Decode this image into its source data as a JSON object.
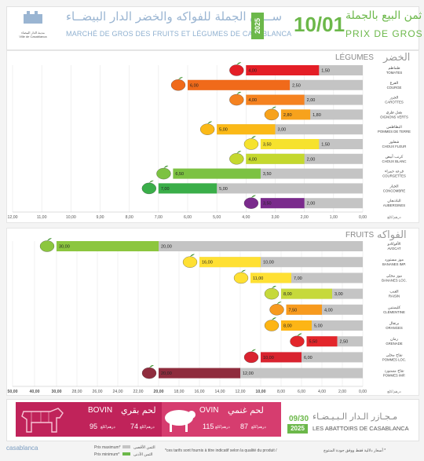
{
  "header": {
    "logo_line1": "مدينة الدار البيضاء",
    "logo_line2": "Ville de Casablanca",
    "market_ar": "ســوق الجملة للفواكه والخضر الدار البيضــاء",
    "market_fr": "MARCHÉ DE GROS DES FRUITS ET LÉGUMES DE CASABLANCA",
    "year": "2025",
    "date": "10/01",
    "price_title_ar": "ثمن البيع بالجملة",
    "price_title_fr": "PRIX DE GROS"
  },
  "colors": {
    "green": "#6cb84a",
    "max_bar": "#c4c4c4",
    "bovin": "#c0235a",
    "ovin": "#d63d6f"
  },
  "unit_label": "درهم/كلغ",
  "chart_data": [
    {
      "type": "bar",
      "title": "LÉGUMES",
      "title_ar": "الخضر",
      "orientation": "horizontal-reversed",
      "xlim": [
        0,
        12
      ],
      "ticks": [
        "12,00",
        "11,00",
        "10,00",
        "9,00",
        "8,00",
        "7,00",
        "6,00",
        "5,00",
        "4,00",
        "3,00",
        "2,00",
        "1,00",
        "0,00"
      ],
      "series_meaning": {
        "max": "Prix maximum",
        "min": "Prix minimum"
      },
      "rows": [
        {
          "fr": "TOMATES",
          "ar": "طماطم",
          "max": 4.0,
          "min": 1.5,
          "max_label": "4,00",
          "min_label": "1,50",
          "color": "#e41e26",
          "icon": "tomato-icon"
        },
        {
          "fr": "COURGE",
          "ar": "القرع",
          "max": 6.0,
          "min": 2.5,
          "max_label": "6,00",
          "min_label": "2,50",
          "color": "#f06a1a",
          "icon": "pumpkin-icon"
        },
        {
          "fr": "CAROTTES",
          "ar": "الجزر",
          "max": 4.0,
          "min": 2.0,
          "max_label": "4,00",
          "min_label": "2,00",
          "color": "#f58220",
          "icon": "carrot-icon"
        },
        {
          "fr": "OIGNONS VERTS",
          "ar": "بصل طري",
          "max": 2.8,
          "min": 1.8,
          "max_label": "2,80",
          "min_label": "1,80",
          "color": "#f7a21c",
          "icon": "green-onion-icon"
        },
        {
          "fr": "POMMES DE TERRE",
          "ar": "البطاطس",
          "max": 5.0,
          "min": 3.0,
          "max_label": "5,00",
          "min_label": "3,00",
          "color": "#fbb917",
          "icon": "potato-icon"
        },
        {
          "fr": "CHOUX FLEUR",
          "ar": "شفلور",
          "max": 3.5,
          "min": 1.5,
          "max_label": "3,50",
          "min_label": "1,50",
          "color": "#f6e22e",
          "icon": "cauliflower-icon"
        },
        {
          "fr": "CHOUX BLANC",
          "ar": "كرنب أبيض",
          "max": 4.0,
          "min": 2.0,
          "max_label": "4,00",
          "min_label": "2,00",
          "color": "#c4d82e",
          "icon": "cabbage-icon"
        },
        {
          "fr": "COURGETTES",
          "ar": "قرعة حمراء",
          "max": 6.5,
          "min": 3.5,
          "max_label": "6,50",
          "min_label": "3,50",
          "color": "#7cc242",
          "icon": "zucchini-icon"
        },
        {
          "fr": "CONCOMBRE",
          "ar": "الخيار",
          "max": 7.0,
          "min": 5.0,
          "max_label": "7,00",
          "min_label": "5,00",
          "color": "#3aae49",
          "icon": "cucumber-icon"
        },
        {
          "fr": "AUBERGINES",
          "ar": "الباذنجان",
          "max": 3.5,
          "min": 2.0,
          "max_label": "3,50",
          "min_label": "2,00",
          "color": "#7a2a8c",
          "icon": "eggplant-icon"
        }
      ]
    },
    {
      "type": "bar",
      "title": "FRUITS",
      "title_ar": "الفواكه",
      "orientation": "horizontal-reversed",
      "xlim": [
        0,
        50
      ],
      "ticks": [
        "50,00",
        "40,00",
        "30,00",
        "28,00",
        "26,00",
        "24,00",
        "22,00",
        "20,00",
        "18,00",
        "16,00",
        "14,00",
        "12,00",
        "10,00",
        "8,00",
        "6,00",
        "4,00",
        "2,00",
        "0,00"
      ],
      "broken_axis": "0–30 linear; 30–50 compressed",
      "series_meaning": {
        "max": "Prix maximum",
        "min": "Prix minimum"
      },
      "rows": [
        {
          "fr": "AVOCAT",
          "ar": "الأفوكادو",
          "max": 30.0,
          "min": 20.0,
          "max_label": "30,00",
          "min_label": "20,00",
          "color": "#8cc63f",
          "icon": "avocado-icon"
        },
        {
          "fr": "BANANES IMP.",
          "ar": "موز مستورد",
          "max": 16.0,
          "min": 10.0,
          "max_label": "16,00",
          "min_label": "10,00",
          "color": "#ffe033",
          "icon": "banana-icon"
        },
        {
          "fr": "BANANES LOC.",
          "ar": "موز محلي",
          "max": 11.0,
          "min": 7.0,
          "max_label": "11,00",
          "min_label": "7,00",
          "color": "#ffe033",
          "icon": "banana-local-icon"
        },
        {
          "fr": "RAISIN",
          "ar": "العنب",
          "max": 8.0,
          "min": 3.0,
          "max_label": "8,00",
          "min_label": "3,00",
          "color": "#c6d93b",
          "icon": "grape-icon"
        },
        {
          "fr": "CLÉMENTINE",
          "ar": "كليمنتين",
          "max": 7.5,
          "min": 4.0,
          "max_label": "7,50",
          "min_label": "4,00",
          "color": "#f79a1e",
          "icon": "clementine-icon"
        },
        {
          "fr": "ORANGES",
          "ar": "برتقال",
          "max": 8.0,
          "min": 5.0,
          "max_label": "8,00",
          "min_label": "5,00",
          "color": "#fdb515",
          "icon": "orange-icon"
        },
        {
          "fr": "GRENADE",
          "ar": "رمان",
          "max": 5.5,
          "min": 2.5,
          "max_label": "5,50",
          "min_label": "2,50",
          "color": "#e3262b",
          "icon": "pomegranate-icon"
        },
        {
          "fr": "POMMES LOC.",
          "ar": "تفاح محلي",
          "max": 10.0,
          "min": 6.0,
          "max_label": "10,00",
          "min_label": "6,00",
          "color": "#d9232f",
          "icon": "apple-red-icon"
        },
        {
          "fr": "POMMES IMP.",
          "ar": "تفاح مستورد",
          "max": 20.0,
          "min": 12.0,
          "max_label": "20,00",
          "min_label": "12,00",
          "color": "#8f2c3d",
          "icon": "apple-imp-icon"
        }
      ]
    }
  ],
  "abattoirs": {
    "bovin_name": "BOVIN",
    "bovin_ar": "لحم بقري",
    "bovin_max": "95",
    "bovin_min": "74",
    "ovin_name": "OVIN",
    "ovin_ar": "لحم غنمي",
    "ovin_max": "115",
    "ovin_min": "87",
    "unit": "درهم/كلغ",
    "date": "09/30",
    "year": "2025",
    "title_ar": "مـجـازر الـدار الـبـيـضـاء",
    "title_fr": "LES ABATTOIRS DE CASABLANCA"
  },
  "footer": {
    "brand": "casablanca",
    "legend_max": "Prix maximum*",
    "legend_min": "Prix minimum*",
    "legend_max_ar": "الثمن الأقصى",
    "legend_min_ar": "الثمن الأدنى",
    "note_fr": "*ces tarifs sont fournis à titre indicatif selon la qualité du produit /",
    "note_ar": "أسعار دلالية فقط ووفق جودة المنتوج *"
  }
}
